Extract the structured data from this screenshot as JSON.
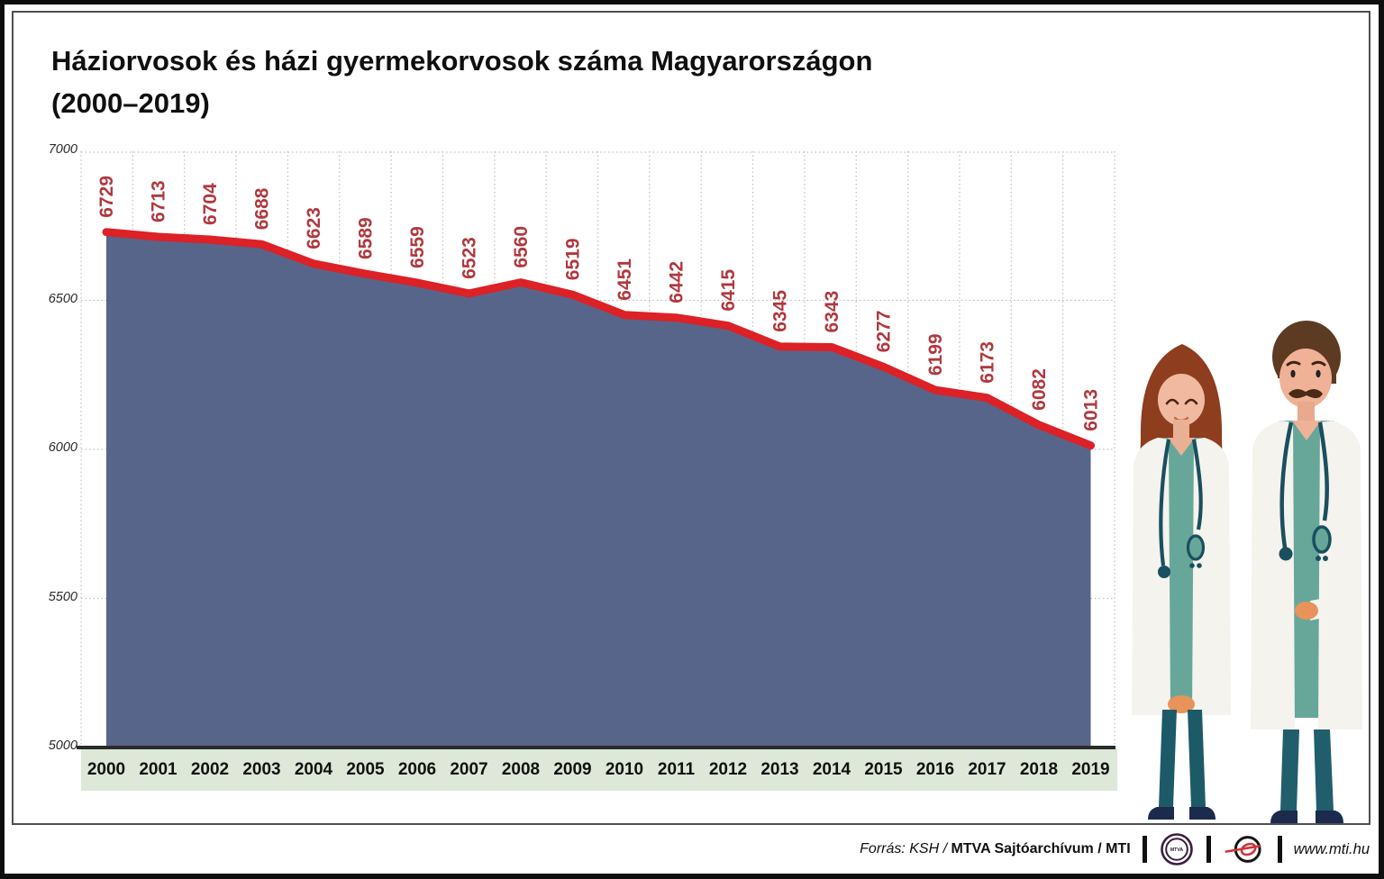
{
  "page": {
    "title_line1": "Háziorvosok és házi gyermekorvosok száma Magyarországon",
    "title_line2": "(2000–2019)"
  },
  "chart_data": {
    "type": "area",
    "title": "Háziorvosok és házi gyermekorvosok száma Magyarországon (2000–2019)",
    "categories": [
      2000,
      2001,
      2002,
      2003,
      2004,
      2005,
      2006,
      2007,
      2008,
      2009,
      2010,
      2011,
      2012,
      2013,
      2014,
      2015,
      2016,
      2017,
      2018,
      2019
    ],
    "values": [
      6729,
      6713,
      6704,
      6688,
      6623,
      6589,
      6559,
      6523,
      6560,
      6519,
      6451,
      6442,
      6415,
      6345,
      6343,
      6277,
      6199,
      6173,
      6082,
      6013
    ],
    "ylim": [
      5000,
      7000
    ],
    "yticks": [
      7000,
      6500,
      6000,
      5500,
      5000
    ],
    "grid": "dotted",
    "legend": "none",
    "colors": {
      "line": "#dc2127",
      "area": "#57658a",
      "value_label": "#b0383d",
      "gridline": "#bfbfbf",
      "axis_strip": "#dde8d8",
      "baseline": "#2b2b2b"
    }
  },
  "footer": {
    "source_prefix": "Forrás: KSH /",
    "source_bold": "MTVA Sajtóarchívum",
    "source_suffix": "/ MTI",
    "mtva_logo_text": "MTVA",
    "website": "www.mti.hu"
  }
}
